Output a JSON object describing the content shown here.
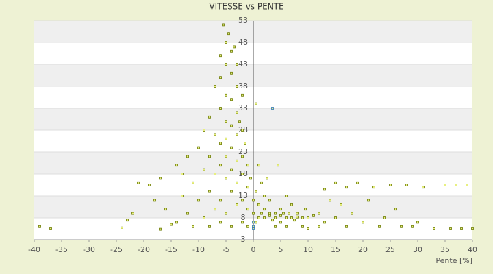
{
  "chart_data": {
    "type": "scatter",
    "title": "VITESSE vs PENTE",
    "x_label": "Pente [%]",
    "xlim": [
      -40,
      40
    ],
    "xticks": [
      -40,
      -35,
      -30,
      -25,
      -20,
      -15,
      -10,
      -5,
      0,
      5,
      10,
      15,
      20,
      25,
      30,
      35,
      40
    ],
    "ylim": [
      3,
      53
    ],
    "yticks": [
      3,
      8,
      13,
      18,
      23,
      28,
      33,
      38,
      43,
      48,
      53
    ],
    "grid": true,
    "series": [
      {
        "color": "#6b7a00",
        "x": [
          -39,
          -37,
          -24,
          -23,
          -22,
          -21,
          -19,
          -18,
          -17,
          -17,
          -16,
          -15,
          -14,
          -14,
          -13,
          -13,
          -12,
          -12,
          -11,
          -11,
          -10,
          -10,
          -9,
          -9,
          -9,
          -8,
          -8,
          -8,
          -8,
          -7,
          -7,
          -7,
          -7,
          -6,
          -6,
          -6,
          -6,
          -6,
          -6,
          -6,
          -5.5,
          -5,
          -5,
          -5,
          -5,
          -5,
          -5,
          -5,
          -5,
          -4.5,
          -4,
          -4,
          -4,
          -4,
          -4,
          -4,
          -4,
          -4,
          -3.5,
          -3,
          -3,
          -3,
          -3,
          -3,
          -3,
          -3,
          -2.5,
          -2,
          -2,
          -2,
          -2,
          -2,
          -2,
          -1.5,
          -1,
          -1,
          -1,
          -1,
          -0.5,
          0,
          0,
          0.5,
          0.5,
          0.5,
          1,
          1,
          1,
          1.5,
          1.5,
          2,
          2,
          2,
          2.5,
          3,
          3,
          3,
          3.5,
          4,
          4,
          4,
          4.5,
          5,
          5,
          5,
          5.5,
          6,
          6,
          6,
          6.5,
          7,
          7,
          7.5,
          8,
          8,
          9,
          9,
          9.5,
          10,
          10,
          11,
          12,
          12,
          13,
          13,
          14,
          15,
          15,
          16,
          17,
          17,
          18,
          19,
          20,
          21,
          22,
          23,
          24,
          25,
          26,
          27,
          28,
          29,
          30,
          31,
          33,
          35,
          36,
          37,
          38,
          39,
          40
        ],
        "values": [
          6,
          5.5,
          5.7,
          7.5,
          9,
          16,
          15.5,
          12,
          5.4,
          17,
          10,
          6.5,
          20,
          7,
          13,
          18,
          9,
          22,
          16,
          6,
          24,
          12,
          28,
          19,
          8,
          31,
          22,
          14,
          6,
          38,
          27,
          18,
          10,
          45,
          40,
          33,
          25,
          20,
          12,
          7,
          52,
          48,
          43,
          36,
          30,
          26,
          22,
          17,
          9,
          50,
          46,
          41,
          35,
          29,
          24,
          19,
          14,
          6,
          47,
          43,
          38,
          32,
          27,
          21,
          16,
          11,
          30,
          36,
          28,
          22,
          18,
          12,
          7,
          25,
          20,
          15,
          10,
          6,
          17,
          12,
          9,
          34,
          14,
          7,
          20,
          11,
          8,
          16,
          9,
          13,
          8,
          10,
          17,
          9,
          8.5,
          12,
          7.5,
          9,
          8,
          6,
          20,
          8.5,
          10,
          7,
          9,
          8,
          13,
          6,
          9,
          8,
          11,
          7.5,
          9,
          8.2,
          8,
          6,
          10,
          8,
          5.5,
          8.5,
          9,
          6,
          14.5,
          7,
          12,
          16,
          8,
          11,
          6,
          15,
          9,
          16,
          7,
          12,
          15,
          6,
          8,
          15.5,
          10,
          6,
          15.5,
          6,
          7,
          15,
          5.5,
          15.5,
          5.5,
          15.5,
          5.5,
          15.5,
          5.5
        ]
      },
      {
        "color": "#2e75b6",
        "x": [
          3.5,
          0,
          0,
          0
        ],
        "values": [
          33,
          6,
          5.5,
          7
        ]
      }
    ]
  }
}
